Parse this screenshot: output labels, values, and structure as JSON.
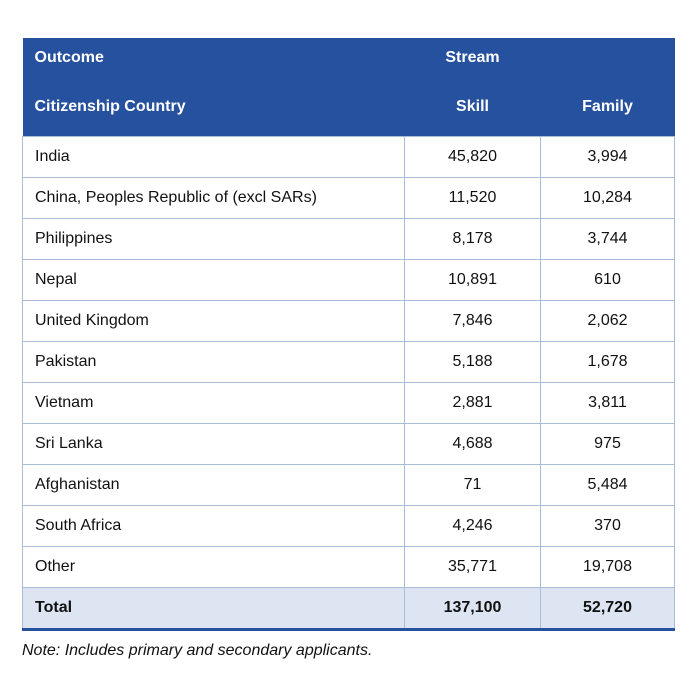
{
  "table": {
    "header": {
      "outcome_label": "Outcome",
      "stream_label": "Stream",
      "citizenship_label": "Citizenship Country",
      "skill_label": "Skill",
      "family_label": "Family"
    },
    "rows": [
      {
        "country": "India",
        "skill": "45,820",
        "family": "3,994"
      },
      {
        "country": "China, Peoples Republic of (excl SARs)",
        "skill": "11,520",
        "family": "10,284"
      },
      {
        "country": "Philippines",
        "skill": "8,178",
        "family": "3,744"
      },
      {
        "country": "Nepal",
        "skill": "10,891",
        "family": "610"
      },
      {
        "country": "United Kingdom",
        "skill": "7,846",
        "family": "2,062"
      },
      {
        "country": "Pakistan",
        "skill": "5,188",
        "family": "1,678"
      },
      {
        "country": "Vietnam",
        "skill": "2,881",
        "family": "3,811"
      },
      {
        "country": "Sri Lanka",
        "skill": "4,688",
        "family": "975"
      },
      {
        "country": "Afghanistan",
        "skill": "71",
        "family": "5,484"
      },
      {
        "country": "South Africa",
        "skill": "4,246",
        "family": "370"
      },
      {
        "country": "Other",
        "skill": "35,771",
        "family": "19,708"
      }
    ],
    "total": {
      "label": "Total",
      "skill": "137,100",
      "family": "52,720"
    }
  },
  "note": "Note: Includes primary and secondary applicants.",
  "colors": {
    "header_bg": "#26519f",
    "total_bg": "#dce5f1",
    "grid_line": "#a9bcd8"
  }
}
